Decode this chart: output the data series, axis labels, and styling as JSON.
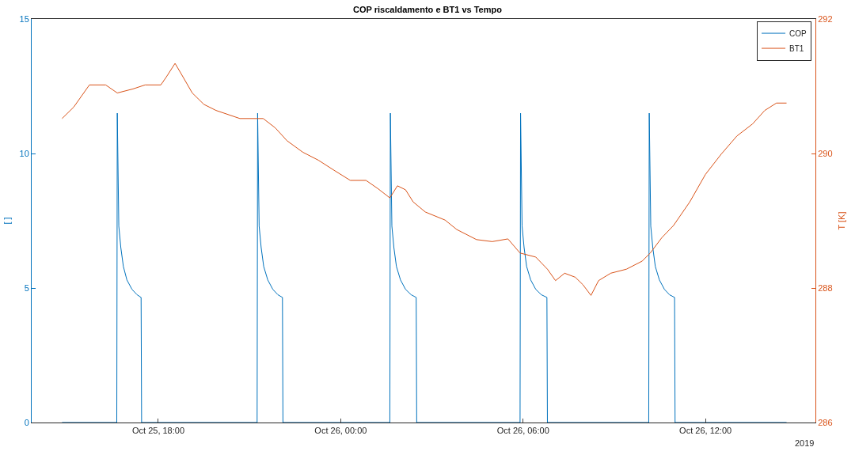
{
  "chart_data": {
    "type": "line",
    "title": "COP riscaldamento e BT1 vs Tempo",
    "ylabel": "[ ]",
    "y2label": "T [K]",
    "xlim": [
      "2019-10-25T13:50",
      "2019-10-26T15:37"
    ],
    "xticks": [
      {
        "value": "2019-10-25T18:00",
        "label": "Oct 25, 18:00"
      },
      {
        "value": "2019-10-26T00:00",
        "label": "Oct 26, 00:00"
      },
      {
        "value": "2019-10-26T06:00",
        "label": "Oct 26, 06:00"
      },
      {
        "value": "2019-10-26T12:00",
        "label": "Oct 26, 12:00"
      }
    ],
    "ylim": [
      0,
      15
    ],
    "yticks": [
      0,
      5,
      10,
      15
    ],
    "y2lim": [
      286,
      292
    ],
    "y2ticks": [
      286,
      288,
      290,
      292
    ],
    "grid": false,
    "legend": "top right",
    "marker": "none",
    "line_style": "solid",
    "annotations": [
      "2019"
    ],
    "series": [
      {
        "name": "COP",
        "color": "#0072bd",
        "x": [
          "2019-10-25T14:50",
          "2019-10-25T16:38",
          "2019-10-25T16:39",
          "2019-10-25T16:42",
          "2019-10-25T16:46",
          "2019-10-25T16:51",
          "2019-10-25T16:58",
          "2019-10-25T17:08",
          "2019-10-25T17:18",
          "2019-10-25T17:26",
          "2019-10-25T17:27",
          "2019-10-25T21:15",
          "2019-10-25T21:16",
          "2019-10-25T21:19",
          "2019-10-25T21:23",
          "2019-10-25T21:28",
          "2019-10-25T21:36",
          "2019-10-25T21:46",
          "2019-10-25T21:56",
          "2019-10-25T22:05",
          "2019-10-25T22:06",
          "2019-10-26T01:37",
          "2019-10-26T01:38",
          "2019-10-26T01:41",
          "2019-10-26T01:45",
          "2019-10-26T01:50",
          "2019-10-26T01:58",
          "2019-10-26T02:08",
          "2019-10-26T02:19",
          "2019-10-26T02:29",
          "2019-10-26T02:30",
          "2019-10-26T05:54",
          "2019-10-26T05:55",
          "2019-10-26T05:58",
          "2019-10-26T06:02",
          "2019-10-26T06:07",
          "2019-10-26T06:15",
          "2019-10-26T06:25",
          "2019-10-26T06:36",
          "2019-10-26T06:47",
          "2019-10-26T06:48",
          "2019-10-26T10:08",
          "2019-10-26T10:09",
          "2019-10-26T10:12",
          "2019-10-26T10:16",
          "2019-10-26T10:21",
          "2019-10-26T10:29",
          "2019-10-26T10:39",
          "2019-10-26T10:49",
          "2019-10-26T10:59",
          "2019-10-26T11:00",
          "2019-10-26T14:40"
        ],
        "values": [
          0,
          0,
          11.5,
          7.3,
          6.5,
          5.8,
          5.3,
          4.95,
          4.75,
          4.65,
          0,
          0,
          11.5,
          7.3,
          6.5,
          5.8,
          5.3,
          4.95,
          4.75,
          4.65,
          0,
          0,
          11.5,
          7.3,
          6.5,
          5.8,
          5.3,
          4.95,
          4.75,
          4.65,
          0,
          0,
          11.5,
          7.3,
          6.5,
          5.8,
          5.3,
          4.95,
          4.75,
          4.65,
          0,
          0,
          11.5,
          7.3,
          6.5,
          5.8,
          5.3,
          4.95,
          4.75,
          4.65,
          0,
          0
        ]
      },
      {
        "name": "BT1",
        "color": "#d95319",
        "axis": "y2",
        "x": [
          "2019-10-25T14:50",
          "2019-10-25T15:13",
          "2019-10-25T15:44",
          "2019-10-25T16:16",
          "2019-10-25T16:39",
          "2019-10-25T17:10",
          "2019-10-25T17:34",
          "2019-10-25T18:05",
          "2019-10-25T18:16",
          "2019-10-25T18:33",
          "2019-10-25T18:44",
          "2019-10-25T19:07",
          "2019-10-25T19:30",
          "2019-10-25T19:54",
          "2019-10-25T20:41",
          "2019-10-25T21:27",
          "2019-10-25T21:51",
          "2019-10-25T22:14",
          "2019-10-25T22:45",
          "2019-10-25T23:16",
          "2019-10-25T23:47",
          "2019-10-26T00:19",
          "2019-10-26T00:50",
          "2019-10-26T01:13",
          "2019-10-26T01:37",
          "2019-10-26T01:52",
          "2019-10-26T02:08",
          "2019-10-26T02:23",
          "2019-10-26T02:47",
          "2019-10-26T03:26",
          "2019-10-26T03:49",
          "2019-10-26T04:28",
          "2019-10-26T04:59",
          "2019-10-26T05:30",
          "2019-10-26T05:54",
          "2019-10-26T06:25",
          "2019-10-26T06:48",
          "2019-10-26T07:04",
          "2019-10-26T07:22",
          "2019-10-26T07:43",
          "2019-10-26T07:58",
          "2019-10-26T08:14",
          "2019-10-26T08:29",
          "2019-10-26T08:53",
          "2019-10-26T09:24",
          "2019-10-26T09:55",
          "2019-10-26T10:11",
          "2019-10-26T10:34",
          "2019-10-26T10:57",
          "2019-10-26T11:29",
          "2019-10-26T12:00",
          "2019-10-26T12:31",
          "2019-10-26T13:02",
          "2019-10-26T13:33",
          "2019-10-26T13:57",
          "2019-10-26T14:20",
          "2019-10-26T14:40"
        ],
        "values": [
          290.52,
          290.69,
          291.02,
          291.02,
          290.9,
          290.96,
          291.02,
          291.02,
          291.14,
          291.34,
          291.2,
          290.9,
          290.73,
          290.64,
          290.52,
          290.52,
          290.38,
          290.19,
          290.02,
          289.9,
          289.75,
          289.6,
          289.6,
          289.48,
          289.34,
          289.52,
          289.46,
          289.28,
          289.13,
          289.01,
          288.87,
          288.72,
          288.69,
          288.73,
          288.52,
          288.46,
          288.28,
          288.11,
          288.22,
          288.16,
          288.05,
          287.89,
          288.11,
          288.22,
          288.28,
          288.4,
          288.52,
          288.75,
          288.93,
          289.28,
          289.69,
          289.99,
          290.26,
          290.44,
          290.64,
          290.75,
          290.75
        ]
      }
    ]
  }
}
